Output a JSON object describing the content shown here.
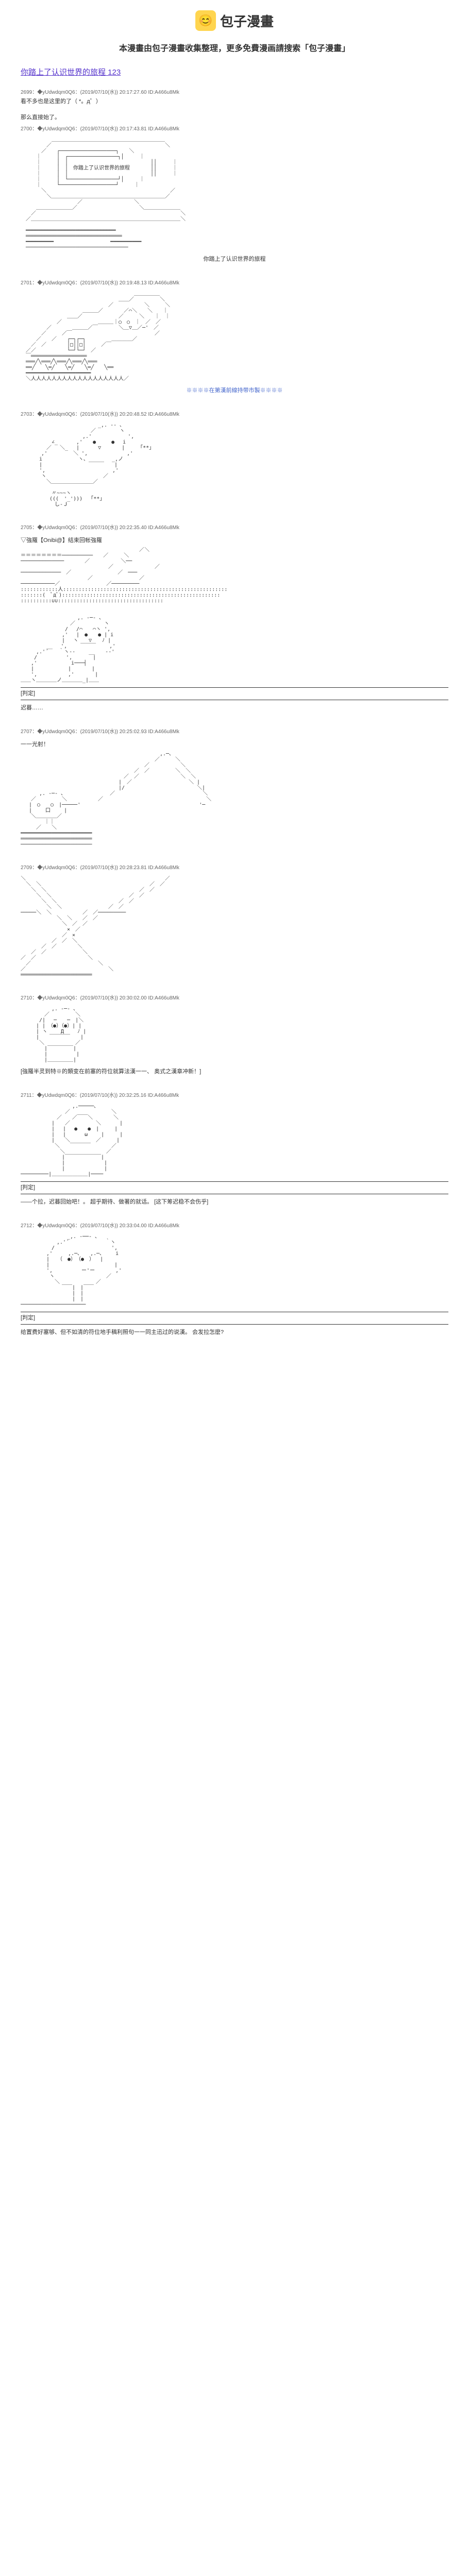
{
  "header": {
    "logo_emoji": "😊",
    "site_name": "包子漫畫",
    "tagline": "本漫畫由包子漫畫收集整理，更多免費漫画請搜索「包子漫畫」"
  },
  "title": {
    "text": "你踏上了认识世界的旅程 123",
    "href": "#"
  },
  "first_meta": "2699：◆yUdwdqm0Q6：(2019/07/10(水)) 20:17:27.60 ID:A466u8Mk",
  "intro": "看不多也是这里的了（ *。д゜）",
  "posts": [
    {
      "id": "p1",
      "meta": "2700：◆yUdwdqm0Q6：(2019/07/10(水)) 20:17:43.81 ID:A466u8Mk",
      "text": "那么直接始了。",
      "ascii_key": "a1",
      "caption": "你踏上了认识世界的旅程"
    },
    {
      "id": "p2",
      "meta": "2701：◆yUdwdqm0Q6：(2019/07/10(水)) 20:19:48.13 ID:A466u8Mk",
      "ascii_key": "a2",
      "caption": "※※※※在第漢前線持带市製※※※※"
    },
    {
      "id": "p3",
      "meta": "2703：◆yUdwdqm0Q6：(2019/07/10(水)) 20:20:48.52 ID:A466u8Mk",
      "ascii_key": "a3"
    },
    {
      "id": "p4",
      "meta": "2705：◆yUdwdqm0Q6：(2019/07/10(水)) 20:22:35.40 ID:A466u8Mk",
      "ascii_key": "a4",
      "pretext": "▽強羅【Onibi@】结束回帐強羅",
      "tag": "[判定]",
      "narration": "迟暮……"
    },
    {
      "id": "p5",
      "meta": "2707：◆yUdwdqm0Q6：(2019/07/10(水)) 20:25:02.93 ID:A466u8Mk",
      "ascii_key": "a5",
      "pretext": "一一光射！"
    },
    {
      "id": "p6",
      "meta": "2709：◆yUdwdqm0Q6：(2019/07/10(水)) 20:28:23.81 ID:A466u8Mk",
      "ascii_key": "a6"
    },
    {
      "id": "p7",
      "meta": "2710：◆yUdwdqm0Q6：(2019/07/10(水)) 20:30:02.00 ID:A466u8Mk",
      "ascii_key": "a7",
      "narration": "[強羅半灵到特※的類变在前塞的符位就算法漢一一、\n奥式之漢章冲新！]"
    },
    {
      "id": "p8",
      "meta": "2711：◆yUdwdqm0Q6：(2019/07/10(水)) 20:32:25.16 ID:A466u8Mk",
      "ascii_key": "a8",
      "tag": "[判定]",
      "narration": "——个拉，迟暮回始吧！。\n超乎期待、做著的就话。\n[这下筹迟稳不会伤乎]"
    },
    {
      "id": "p9",
      "meta": "2712：◆yUdwdqm0Q6：(2019/07/10(水)) 20:33:04.00 ID:A466u8Mk",
      "ascii_key": "a9",
      "tag": "[判定]",
      "narration": "给置费好塞够、但不如清的符位地手稿利照句一一同主迅过的说漢。\n会发拉怎麽?"
    }
  ],
  "ascii": {
    "a1": "　　　　　　＿＿＿＿＿＿＿＿＿＿＿＿＿＿＿＿＿＿＿＿＿＿\n　　　　　／　　　　　　　　　　　　　　　　　　　　　　＼\n　　　　／　　┌──────────────────┐　　＼\n　　　｜　　　│　┌────────────────┐│　　　｜\n　　　｜　　　│　│　　　　　　　　　　　　　　　　││　　　｜\n　　　｜　　　│　│　你踏上了认识世界的旅程　　　　││　　　｜\n　　　｜　　　│　│　　　　　　　　　　　　　　　　││　　　｜\n　　　｜　　　│　└────────────────┘│　　　｜\n　　　｜　　　└──────────────────┘　　　｜\n　　　　＼　　　　　　　　　　　　　　　　　　　　　　　　／\n　　　　　＼＿＿＿＿＿＿＿＿＿＿＿＿＿＿＿＿＿＿＿＿＿＿／\n　　　　　　　　　　　／　　　　　　　　　　＼\n　　　＿＿＿＿＿＿＿／　　　　　　　　　　　　＼＿＿＿＿＿＿＿\n　　／　　　　　　　　　　　　　　　　　　　　　　　　　　　　＼\n　／＿＿＿＿＿＿＿＿＿＿＿＿＿＿＿＿＿＿＿＿＿＿＿＿＿＿＿＿＿＼\n\n　━━━━━━━━━━━━━━━━━━━━━━━━━━━━━\n　═══════════════════════════════\n　━━━━━━━━━　　　　　　　　　　　━━━━━━━━━━\n　─────────────────────────────────",
    "a2": "　　　　　　　　　　　　　　　　　　　　　　＿＿＿＿＿\n　　　　　　　　　　　　　　　　　　　＿＿／　　　　　＼\n　　　　　　　　　　　　　　　　　／　　　　　　＼　　　＼\n　　　　　　　　　　　　＿＿＿／　　　　／⌒＼　　＼　　｜\n　　　　　　　　　＿＿／　　　　　　　／　　　＼　　｜　｜\n　　　　　　　／　　　　　　　＿＿＿｜○　○　｜　／　／\n　　　　　／　　　　＿＿＿／￣　　　　＼＿▽＿／─'　／\n　　　　／　　　／￣　　　　　　　　　　　　　　　　／\n　　　／　　／　　┌─┐┌─┐　　　　　＿＿＿＿／\n　　／　／　　　　│□││□│　　　／￣\n　／／　　　　　　└─┘└─┘　／\n　￣══════════════════\n　═══╱╲═══╱╲═══╱╲═══╱╲═══\n　══╱　　╲═╱　　╲═╱　　╲═╱　　╲══\n　━━━━━━━━━━━━━━━━━━━━━\n　＼人人人人人人人人人人人人人人人人人人／",
    "a3": "　　　　　　　　　　　　　　　_,. -‐ ､\n　　　　　　　　　　　　　 ／　　　　 ヽ\n　　　　　　　　　　　　,.'　　　　　　　',\n　　　　　　∠_　　 　,'　　●　　　●　 i\n　　　　　／　 ＼_　 |　　　 ▽　　　　|　　　｢**｣\n　　　　,'　　　　　＼ ',　　　　　　　 ,'\n　　　 i　　　　　　　ヽ､　　　　　_,ノ\n　　　 |　　　　　　　　　￣￣￣　　|\n　　　 ',　　　　　　　　　　　　　,'\n　　　　ヽ　　　　　　　　　　　／\n　　　　　＼＿＿＿＿＿＿＿＿／\n\n　　　　　　〃~~~ヽ\n　　　　　 (((　'_'))) 　｢**｣\n　　　　　　 し-Ｊ",
    "a4": "　　　　　　　　　　　　　　　　　　　　　　　／＼\n＝＝＝＝＝＝＝＝──────────　　／　　　＼\n──────────────　　　　／　　　　　　＼──\n　　　　　　　　　　　　　　　　　／　　　　　　　　／\n─────────────　／　　　　　　　　　／　───\n　　　　　　　　　　　　　／　　　　　　　　　／\n───────────／　　　　　　　　　／─────────\n::::::::::::人:::::::::::::::::::::::::::::::::::::::::::::::::::::\n:::::::(　ﾟдﾟ):::::::::::::::::::::::::::::::::::::::::::::::::::\n::::::::::∪∪::::::::::::::::::::::::::::::::::\n\n\n　　　　　　　　　　　,. -─- ､\n　　　　　　　　　 ／　　　　　 ヽ\n　　　　　　　　 /　 /⌒　　⌒ヽ ',\n　　　　　　　　,'　 |　●　　● | i\n　　　　　　　　|　 ヽ　　▽　　ﾉ |\n　　　　　__　 ',　　 ￣￣￣　　 ,'\n　　　,.'´　　｀ヽ‐-　　 __　　-‐'\n　　 /　　　　　 ',　　　　|\n　　,'　　　　　　 i───┤\n　　|　　　　　　 |　　　　|\n　　',　　　　　　,'　　　　|\n＿＿ヽ＿＿＿＿ノ＿＿＿＿_|＿＿",
    "a5": "　　　　　　　　　　　　　　　　　　　　　　　　　　　,.─､\n　　　　　　　　　　　　　　　　　　　　　　　　　　／　　　＼\n　　　　　　　　　　　　　　　　　　　　　　　　／　　　　　　＼\n　　　　　　　　　　　　　　　　　　　　　　／　／　　　　　＼　＼\n　　　　　　　　　　　　　　　　　　　　／　／　　　　　　　　＼　＼\n　　　　　　　　　　　　　　　　　　　|　／　　　　　　　　　　　＼ |\n　　　　　　　　　　　　　　　　　　　|/　　　　　　　　　　　　　　＼|\n　　　 ,. -─- ､　　　　　　　　　／　　　　　　　　　　　　　　　　　＼\n　　／　　　　　＼　　　　　　／　　　　　　　　　　　　　　　　　　　　＼\n　 |　○　　○　|─────'　　　　　　　　　　　　　　　　　　　　　　　'─\n　 |　　 口　　 |\n　　＼＿＿＿＿／\n　　　　 ｜｜\n　　　／　　＼\n━━━━━━━━━━━━━━━━━━━━━━━\n═══════════════════════\n───────────────────────",
    "a6": "＼　　　　　　　　　　　　　　　　　　　　　　　　　　　／\n　＼　＼　　　　　　　　　　　　　　　　　　　　　／　／\n　　＼　＼　　　　　　　　　　　　　　　　　　／　／\n　　　＼　＼　　　　　　　　　　　　　　　／　／\n　　　　＼　＼　　　　　　　　　　　　／　／\n　　　　　＼　＼　　　　　　　　　／　／\n─────＼　＼　　　　　　／　／─────────\n　　　　　　　＼　＼　　／　／\n　　　　　　　　＼　／　／\n　　　　　　　　　×　／\n　　　　　　　　／　×\n　　　　　　／　／　＼\n　　　　／　／　　　　＼\n　　／　／　　　　　　　＼\n／　／　　　　　　　　　　＼\n　／　　　　　　　　　　　　　＼\n／　　　　　　　　　　　　　　　　＼\n═══════════════════════",
    "a7": "　　　　　　,. -─- ､\n　　　　 ／　　　　　＼\n　　　 /|　 ─　　─　|＼\n　　　| |　（●）（●）| |\n　　　| ヽ　　 Д　　 ﾉ |\n　　　|　　￣￣￣￣　　|\n　　　 ＼　　　　　　／\n　　　　 |￣￣￣￣￣|\n　　　　 |　　　　　 |\n　　　　 |＿＿＿＿＿|",
    "a8": "　　　　　　　　　　,.─────､\n　　　　　　　　 ／　　　　　　　　＼\n　　　　　　　／　　／￣￣＼　　　　＼\n　　　　　　|　　／　　　　　＼　　　 |\n　　　　　　|　 |　 ●　　●　|　　　|\n　　　　　　|　 |　　　 ω　　 |　　　|\n　　　　　　|　　＼　　　　　／　　　|\n　　　　　　 ＼　　￣￣￣￣　　　　／\n　　　　　　　 ＼　　　　　　　　／\n　　　　　　　　|￣￣￣￣￣￣￣|\n　　　　　　　　|　　　　　　　 |\n　　　　　　　　|　　　　　　　 |\n─────────|＿＿＿＿＿＿＿|────",
    "a9": "　　　　　　　　　_,. -──- ､\n　　　　　　　,.'´　　　　　　　｀ヽ\n　　　　　　/　　　　　　　　　　　',\n　　　　　,'　　　,.─､　　,.─､　　 i\n　　　　　|　　（　●）　（●　）　 |\n　　　　　|　　　　　　　　　　　　 |\n　　　　　',　　　　　 ー'ー　　　　,'\n　　　　　 ヽ　　　　　　　　　　／\n　　　　　　 ＼　　　　　　　／\n　　　　　　　　￣￣|　|￣￣\n　　　　　　　　　　|　|\n　　　　　　　　　　|　|\n─────────────────────"
  }
}
